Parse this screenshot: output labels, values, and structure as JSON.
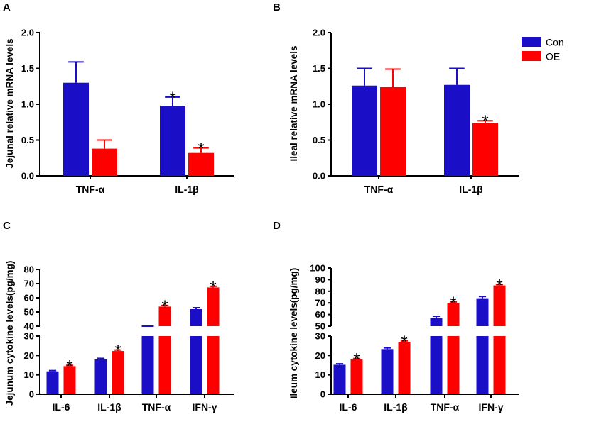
{
  "legend": {
    "items": [
      {
        "name": "Con",
        "color": "#1a0fc7"
      },
      {
        "name": "OE",
        "color": "#ff0000"
      }
    ]
  },
  "colors": {
    "con": "#1a0fc7",
    "oe": "#ff0000",
    "axis": "#000000"
  },
  "chart_data": [
    {
      "panel": "A",
      "type": "bar",
      "ylabel": "Jejunal relative mRNA levels",
      "categories": [
        "TNF-α",
        "IL-1β"
      ],
      "ylim": [
        0,
        2.0
      ],
      "yticks": [
        0.0,
        0.5,
        1.0,
        1.5,
        2.0
      ],
      "tick_labels": [
        "0.0",
        "0.5",
        "1.0",
        "1.5",
        "2.0"
      ],
      "series": [
        {
          "name": "Con",
          "values": [
            1.3,
            0.98
          ],
          "errors": [
            0.29,
            0.12
          ]
        },
        {
          "name": "OE",
          "values": [
            0.38,
            0.32
          ],
          "errors": [
            0.12,
            0.07
          ]
        }
      ],
      "significance": [
        [
          false,
          true
        ],
        [
          false,
          true
        ]
      ]
    },
    {
      "panel": "B",
      "type": "bar",
      "ylabel": "Ileal relative mRNA levels",
      "categories": [
        "TNF-α",
        "IL-1β"
      ],
      "ylim": [
        0,
        2.0
      ],
      "yticks": [
        0.0,
        0.5,
        1.0,
        1.5,
        2.0
      ],
      "tick_labels": [
        "0.0",
        "0.5",
        "1.0",
        "1.5",
        "2.0"
      ],
      "series": [
        {
          "name": "Con",
          "values": [
            1.26,
            1.27
          ],
          "errors": [
            0.24,
            0.23
          ]
        },
        {
          "name": "OE",
          "values": [
            1.24,
            0.74
          ],
          "errors": [
            0.25,
            0.03
          ]
        }
      ],
      "significance": [
        [
          false,
          false
        ],
        [
          false,
          true
        ]
      ]
    },
    {
      "panel": "C",
      "type": "bar",
      "ylabel": "Jejunum cytokine levels(pg/mg)",
      "categories": [
        "IL-6",
        "IL-1β",
        "TNF-α",
        "IFN-γ"
      ],
      "axis_break": {
        "lower": [
          0,
          30
        ],
        "upper": [
          40,
          80
        ]
      },
      "lower_ticks": [
        0,
        10,
        20,
        30
      ],
      "upper_ticks": [
        40,
        50,
        60,
        70,
        80
      ],
      "tick_labels_lower": [
        "0",
        "10",
        "20",
        "30"
      ],
      "tick_labels_upper": [
        "40",
        "50",
        "60",
        "70",
        "80"
      ],
      "series": [
        {
          "name": "Con",
          "values": [
            11.8,
            18.0,
            39.0,
            52.0
          ],
          "errors": [
            0.4,
            0.5,
            1.0,
            1.0
          ]
        },
        {
          "name": "OE",
          "values": [
            14.5,
            22.3,
            53.8,
            67.3
          ],
          "errors": [
            0.4,
            0.5,
            0.8,
            0.8
          ]
        }
      ],
      "significance": [
        [
          false,
          false,
          false,
          false
        ],
        [
          true,
          true,
          true,
          true
        ]
      ]
    },
    {
      "panel": "D",
      "type": "bar",
      "ylabel": "Ileum cytokine levels(pg/mg)",
      "categories": [
        "IL-6",
        "IL-1β",
        "TNF-α",
        "IFN-γ"
      ],
      "axis_break": {
        "lower": [
          0,
          30
        ],
        "upper": [
          50,
          100
        ]
      },
      "lower_ticks": [
        0,
        10,
        20,
        30
      ],
      "upper_ticks": [
        50,
        60,
        70,
        80,
        90,
        100
      ],
      "tick_labels_lower": [
        "0",
        "10",
        "20",
        "30"
      ],
      "tick_labels_upper": [
        "50",
        "60",
        "70",
        "80",
        "90",
        "100"
      ],
      "series": [
        {
          "name": "Con",
          "values": [
            15.2,
            23.3,
            57.0,
            74.0
          ],
          "errors": [
            0.5,
            0.6,
            1.5,
            1.5
          ]
        },
        {
          "name": "OE",
          "values": [
            18.0,
            27.0,
            70.0,
            85.0
          ],
          "errors": [
            0.4,
            0.5,
            0.8,
            0.8
          ]
        }
      ],
      "significance": [
        [
          false,
          false,
          false,
          false
        ],
        [
          true,
          true,
          true,
          true
        ]
      ]
    }
  ]
}
